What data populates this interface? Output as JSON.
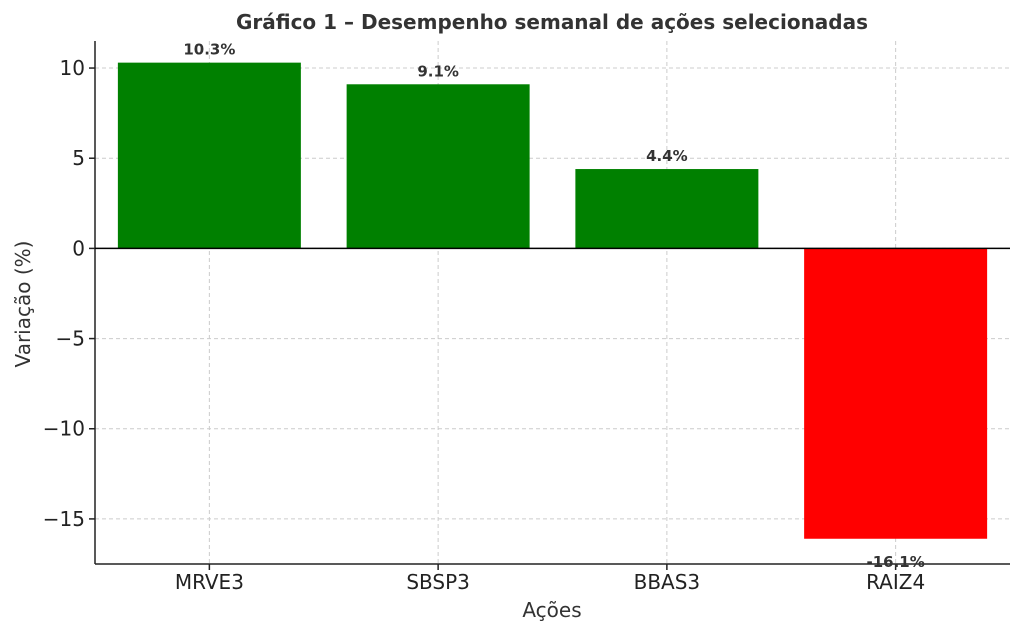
{
  "chart_data": {
    "type": "bar",
    "title": "Gráfico 1 – Desempenho semanal de ações selecionadas",
    "xlabel": "Ações",
    "ylabel": "Variação (%)",
    "categories": [
      "MRVE3",
      "SBSP3",
      "BBAS3",
      "RAIZ4"
    ],
    "values": [
      10.3,
      9.1,
      4.4,
      -16.1
    ],
    "data_labels": [
      "10.3%",
      "9.1%",
      "4.4%",
      "-16.1%"
    ],
    "ylim": [
      -17.5,
      11.5
    ],
    "yticks": [
      10,
      5,
      0,
      -5,
      -10,
      -15
    ],
    "ytick_labels": [
      "10",
      "5",
      "0",
      "−5",
      "−10",
      "−15"
    ],
    "grid": true,
    "colors": {
      "positive": "#008000",
      "negative": "#ff0000"
    }
  }
}
